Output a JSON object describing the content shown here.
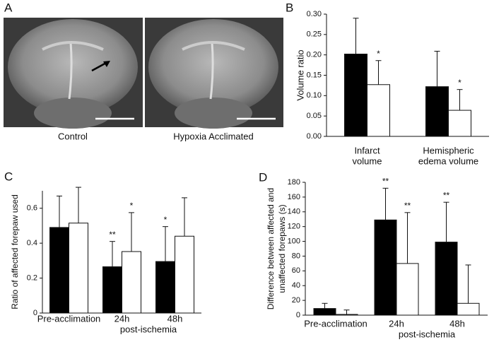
{
  "figure": {
    "panel_labels": [
      "A",
      "B",
      "C",
      "D"
    ],
    "image_captions": [
      "Control",
      "Hypoxia Acclimated"
    ]
  },
  "chart_data": [
    {
      "type": "bar",
      "ylabel": [
        "Volume ratio"
      ],
      "categories": [
        [
          "Infarct",
          "volume"
        ],
        [
          "Hemispheric",
          "edema volume"
        ]
      ],
      "series": [
        {
          "color": "#000000",
          "values": [
            0.202,
            0.122
          ],
          "errors": [
            0.088,
            0.087
          ],
          "significance": [
            null,
            null
          ]
        },
        {
          "color": "#ffffff",
          "values": [
            0.127,
            0.064
          ],
          "errors": [
            0.059,
            0.051
          ],
          "significance": [
            "*",
            "*"
          ]
        }
      ],
      "ylim": [
        0,
        0.3
      ],
      "yticks": [
        {
          "value": 0,
          "label": "0.00"
        },
        {
          "value": 0.05,
          "label": "0.05"
        },
        {
          "value": 0.1,
          "label": "0.10"
        },
        {
          "value": 0.15,
          "label": "0.15"
        },
        {
          "value": 0.2,
          "label": "0.20"
        },
        {
          "value": 0.25,
          "label": "0.25"
        },
        {
          "value": 0.3,
          "label": "0.30"
        }
      ]
    },
    {
      "type": "bar",
      "ylabel": [
        "Ratio of affected forepaw used"
      ],
      "xlabel": "post-ischemia",
      "categories": [
        [
          "Pre-acclimation"
        ],
        [
          "24h"
        ],
        [
          "48h"
        ]
      ],
      "series": [
        {
          "color": "#000000",
          "values": [
            0.49,
            0.265,
            0.295
          ],
          "errors": [
            0.18,
            0.145,
            0.2
          ],
          "significance": [
            null,
            "**",
            "*"
          ]
        },
        {
          "color": "#ffffff",
          "values": [
            0.515,
            0.352,
            0.44
          ],
          "errors": [
            0.205,
            0.223,
            0.22
          ],
          "significance": [
            null,
            "*",
            null
          ]
        }
      ],
      "ylim": [
        0,
        0.7
      ],
      "yticks": [
        0,
        0.2,
        0.4,
        0.6
      ]
    },
    {
      "type": "bar",
      "ylabel": [
        "Difference between affected and",
        "unaffected forepaws (s)"
      ],
      "xlabel": "post-ischemia",
      "categories": [
        [
          "Pre-acclimation"
        ],
        [
          "24h"
        ],
        [
          "48h"
        ]
      ],
      "series": [
        {
          "color": "#000000",
          "values": [
            9,
            129,
            99
          ],
          "errors": [
            7,
            43,
            54
          ],
          "significance": [
            null,
            "**",
            "**"
          ]
        },
        {
          "color": "#ffffff",
          "values": [
            1,
            70,
            16
          ],
          "errors": [
            6,
            69,
            52
          ],
          "significance": [
            null,
            "**",
            null
          ]
        }
      ],
      "ylim": [
        0,
        180
      ],
      "yticks": [
        0,
        20,
        40,
        60,
        80,
        100,
        120,
        140,
        160,
        180
      ]
    }
  ]
}
